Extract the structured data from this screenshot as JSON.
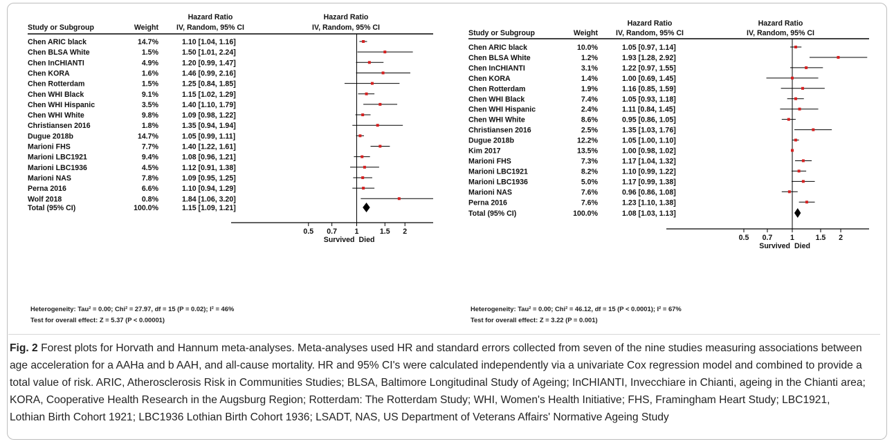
{
  "figure": {
    "caption_label": "Fig. 2",
    "caption_text": "Forest plots for Horvath and Hannum meta-analyses. Meta-analyses used HR and standard errors collected from seven of the nine studies measuring associations between age acceleration for a AAHa and b AAH, and all-cause mortality. HR and 95% CI's were calculated independently via a univariate Cox regression model and combined to provide a total value of risk. ARIC, Atherosclerosis Risk in Communities Studies; BLSA, Baltimore Longitudinal Study of Ageing; InCHIANTI, Invecchiare in Chianti, ageing in the Chianti area; KORA, Cooperative Health Research in the Augsburg Region; Rotterdam: The Rotterdam Study; WHI, Women's Health Initiative; FHS, Framingham Heart Study; LBC1921, Lothian Birth Cohort 1921; LBC1936 Lothian Birth Cohort 1936; LSADT, NAS, US Department of Veterans Affairs' Normative Ageing Study"
  },
  "colors": {
    "point": "#d62020",
    "line": "#000000",
    "diamond": "#000000"
  },
  "chart_data": [
    {
      "type": "forest",
      "panel": "a",
      "headers": {
        "study": "Study or Subgroup",
        "weight": "Weight",
        "hr_top": "Hazard Ratio",
        "hr_bottom": "IV, Random, 95% CI",
        "plot_top": "Hazard Ratio",
        "plot_bottom": "IV, Random, 95% CI"
      },
      "rows": [
        {
          "study": "Chen ARIC black",
          "weight": "14.7%",
          "hr_text": "1.10 [1.04, 1.16]",
          "hr": 1.1,
          "lo": 1.04,
          "hi": 1.16
        },
        {
          "study": "Chen BLSA White",
          "weight": "1.5%",
          "hr_text": "1.50 [1.01, 2.24]",
          "hr": 1.5,
          "lo": 1.01,
          "hi": 2.24
        },
        {
          "study": "Chen InCHIANTI",
          "weight": "4.9%",
          "hr_text": "1.20 [0.99, 1.47]",
          "hr": 1.2,
          "lo": 0.99,
          "hi": 1.47
        },
        {
          "study": "Chen KORA",
          "weight": "1.6%",
          "hr_text": "1.46 [0.99, 2.16]",
          "hr": 1.46,
          "lo": 0.99,
          "hi": 2.16
        },
        {
          "study": "Chen Rotterdam",
          "weight": "1.5%",
          "hr_text": "1.25 [0.84, 1.85]",
          "hr": 1.25,
          "lo": 0.84,
          "hi": 1.85
        },
        {
          "study": "Chen WHI Black",
          "weight": "9.1%",
          "hr_text": "1.15 [1.02, 1.29]",
          "hr": 1.15,
          "lo": 1.02,
          "hi": 1.29
        },
        {
          "study": "Chen WHI Hispanic",
          "weight": "3.5%",
          "hr_text": "1.40 [1.10, 1.79]",
          "hr": 1.4,
          "lo": 1.1,
          "hi": 1.79
        },
        {
          "study": "Chen WHI White",
          "weight": "9.8%",
          "hr_text": "1.09 [0.98, 1.22]",
          "hr": 1.09,
          "lo": 0.98,
          "hi": 1.22
        },
        {
          "study": "Christiansen 2016",
          "weight": "1.8%",
          "hr_text": "1.35 [0.94, 1.94]",
          "hr": 1.35,
          "lo": 0.94,
          "hi": 1.94
        },
        {
          "study": "Dugue 2018b",
          "weight": "14.7%",
          "hr_text": "1.05 [0.99, 1.11]",
          "hr": 1.05,
          "lo": 0.99,
          "hi": 1.11
        },
        {
          "study": "Marioni FHS",
          "weight": "7.7%",
          "hr_text": "1.40 [1.22, 1.61]",
          "hr": 1.4,
          "lo": 1.22,
          "hi": 1.61
        },
        {
          "study": "Marioni LBC1921",
          "weight": "9.4%",
          "hr_text": "1.08 [0.96, 1.21]",
          "hr": 1.08,
          "lo": 0.96,
          "hi": 1.21
        },
        {
          "study": "Marioni LBC1936",
          "weight": "4.5%",
          "hr_text": "1.12 [0.91, 1.38]",
          "hr": 1.12,
          "lo": 0.91,
          "hi": 1.38
        },
        {
          "study": "Marioni NAS",
          "weight": "7.8%",
          "hr_text": "1.09 [0.95, 1.25]",
          "hr": 1.09,
          "lo": 0.95,
          "hi": 1.25
        },
        {
          "study": "Perna 2016",
          "weight": "6.6%",
          "hr_text": "1.10 [0.94, 1.29]",
          "hr": 1.1,
          "lo": 0.94,
          "hi": 1.29
        },
        {
          "study": "Wolf 2018",
          "weight": "0.8%",
          "hr_text": "1.84 [1.06, 3.20]",
          "hr": 1.84,
          "lo": 1.06,
          "hi": 3.2
        }
      ],
      "total": {
        "study": "Total (95% CI)",
        "weight": "100.0%",
        "hr_text": "1.15 [1.09, 1.21]",
        "hr": 1.15,
        "lo": 1.09,
        "hi": 1.21
      },
      "axis": {
        "ticks": [
          0.5,
          0.7,
          1,
          1.5,
          2
        ],
        "tick_labels": [
          "0.5",
          "0.7",
          "1",
          "1.5",
          "2"
        ],
        "min": 0.33,
        "max": 3.0,
        "scale": "log",
        "left_label": "Survived",
        "right_label": "Died"
      },
      "heterogeneity": "Heterogeneity: Tau² = 0.00; Chi² = 27.97, df = 15 (P = 0.02); I² = 46%",
      "overall_effect": "Test for overall effect: Z = 5.37 (P < 0.00001)"
    },
    {
      "type": "forest",
      "panel": "b",
      "headers": {
        "study": "Study or Subgroup",
        "weight": "Weight",
        "hr_top": "Hazard Ratio",
        "hr_bottom": "IV, Random, 95% CI",
        "plot_top": "Hazard Ratio",
        "plot_bottom": "IV, Random, 95% CI"
      },
      "rows": [
        {
          "study": "Chen ARIC black",
          "weight": "10.0%",
          "hr_text": "1.05 [0.97, 1.14]",
          "hr": 1.05,
          "lo": 0.97,
          "hi": 1.14
        },
        {
          "study": "Chen BLSA White",
          "weight": "1.2%",
          "hr_text": "1.93 [1.28, 2.92]",
          "hr": 1.93,
          "lo": 1.28,
          "hi": 2.92
        },
        {
          "study": "Chen InCHIANTI",
          "weight": "3.1%",
          "hr_text": "1.22 [0.97, 1.55]",
          "hr": 1.22,
          "lo": 0.97,
          "hi": 1.55
        },
        {
          "study": "Chen KORA",
          "weight": "1.4%",
          "hr_text": "1.00 [0.69, 1.45]",
          "hr": 1.0,
          "lo": 0.69,
          "hi": 1.45
        },
        {
          "study": "Chen Rotterdam",
          "weight": "1.9%",
          "hr_text": "1.16 [0.85, 1.59]",
          "hr": 1.16,
          "lo": 0.85,
          "hi": 1.59
        },
        {
          "study": "Chen WHI Black",
          "weight": "7.4%",
          "hr_text": "1.05 [0.93, 1.18]",
          "hr": 1.05,
          "lo": 0.93,
          "hi": 1.18
        },
        {
          "study": "Chen WHI Hispanic",
          "weight": "2.4%",
          "hr_text": "1.11 [0.84, 1.45]",
          "hr": 1.11,
          "lo": 0.84,
          "hi": 1.45
        },
        {
          "study": "Chen WHI White",
          "weight": "8.6%",
          "hr_text": "0.95 [0.86, 1.05]",
          "hr": 0.95,
          "lo": 0.86,
          "hi": 1.05
        },
        {
          "study": "Christiansen 2016",
          "weight": "2.5%",
          "hr_text": "1.35 [1.03, 1.76]",
          "hr": 1.35,
          "lo": 1.03,
          "hi": 1.76
        },
        {
          "study": "Dugue 2018b",
          "weight": "12.2%",
          "hr_text": "1.05 [1.00, 1.10]",
          "hr": 1.05,
          "lo": 1.0,
          "hi": 1.1
        },
        {
          "study": "Kim 2017",
          "weight": "13.5%",
          "hr_text": "1.00 [0.98, 1.02]",
          "hr": 1.0,
          "lo": 0.98,
          "hi": 1.02
        },
        {
          "study": "Marioni FHS",
          "weight": "7.3%",
          "hr_text": "1.17 [1.04, 1.32]",
          "hr": 1.17,
          "lo": 1.04,
          "hi": 1.32
        },
        {
          "study": "Marioni LBC1921",
          "weight": "8.2%",
          "hr_text": "1.10 [0.99, 1.22]",
          "hr": 1.1,
          "lo": 0.99,
          "hi": 1.22
        },
        {
          "study": "Marioni LBC1936",
          "weight": "5.0%",
          "hr_text": "1.17 [0.99, 1.38]",
          "hr": 1.17,
          "lo": 0.99,
          "hi": 1.38
        },
        {
          "study": "Marioni NAS",
          "weight": "7.6%",
          "hr_text": "0.96 [0.86, 1.08]",
          "hr": 0.96,
          "lo": 0.86,
          "hi": 1.08
        },
        {
          "study": "Perna 2016",
          "weight": "7.6%",
          "hr_text": "1.23 [1.10, 1.38]",
          "hr": 1.23,
          "lo": 1.1,
          "hi": 1.38
        }
      ],
      "total": {
        "study": "Total (95% CI)",
        "weight": "100.0%",
        "hr_text": "1.08 [1.03, 1.13]",
        "hr": 1.08,
        "lo": 1.03,
        "hi": 1.13
      },
      "axis": {
        "ticks": [
          0.5,
          0.7,
          1,
          1.5,
          2
        ],
        "tick_labels": [
          "0.5",
          "0.7",
          "1",
          "1.5",
          "2"
        ],
        "min": 0.33,
        "max": 3.0,
        "scale": "log",
        "left_label": "Survived",
        "right_label": "Died"
      },
      "heterogeneity": "Heterogeneity: Tau² = 0.00; Chi² = 46.12, df = 15 (P < 0.0001); I² = 67%",
      "overall_effect": "Test for overall effect: Z = 3.22 (P = 0.001)"
    }
  ]
}
